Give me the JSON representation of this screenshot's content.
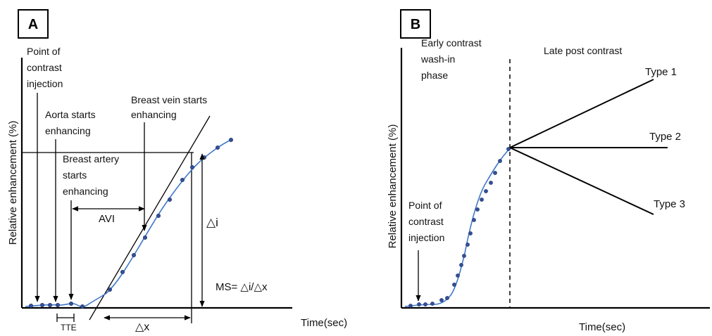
{
  "panel_a": {
    "letter": "A",
    "ylabel": "Relative enhancement (%)",
    "xlabel": "Time(sec)",
    "label_injection": [
      "Point of",
      "contrast",
      "injection"
    ],
    "label_aorta": [
      "Aorta starts",
      "enhancing"
    ],
    "label_artery": [
      "Breast artery",
      "starts",
      "enhancing"
    ],
    "label_vein": [
      "Breast vein starts",
      "enhancing"
    ],
    "label_avi": "AVI",
    "label_delta_i": "△i",
    "label_ms": "MS= △i/△x",
    "label_tte": "TTE",
    "label_delta_x": "△x"
  },
  "panel_b": {
    "letter": "B",
    "ylabel": "Relative enhancement (%)",
    "xlabel": "Time(sec)",
    "label_early": [
      "Early contrast",
      "wash-in",
      "phase"
    ],
    "label_late": "Late post contrast",
    "label_injection": [
      "Point of",
      "contrast",
      "injection"
    ],
    "type1": "Type 1",
    "type2": "Type 2",
    "type3": "Type 3"
  },
  "colors": {
    "curve": "#3f78c8",
    "dots": "#34509a",
    "axes": "#000000"
  }
}
